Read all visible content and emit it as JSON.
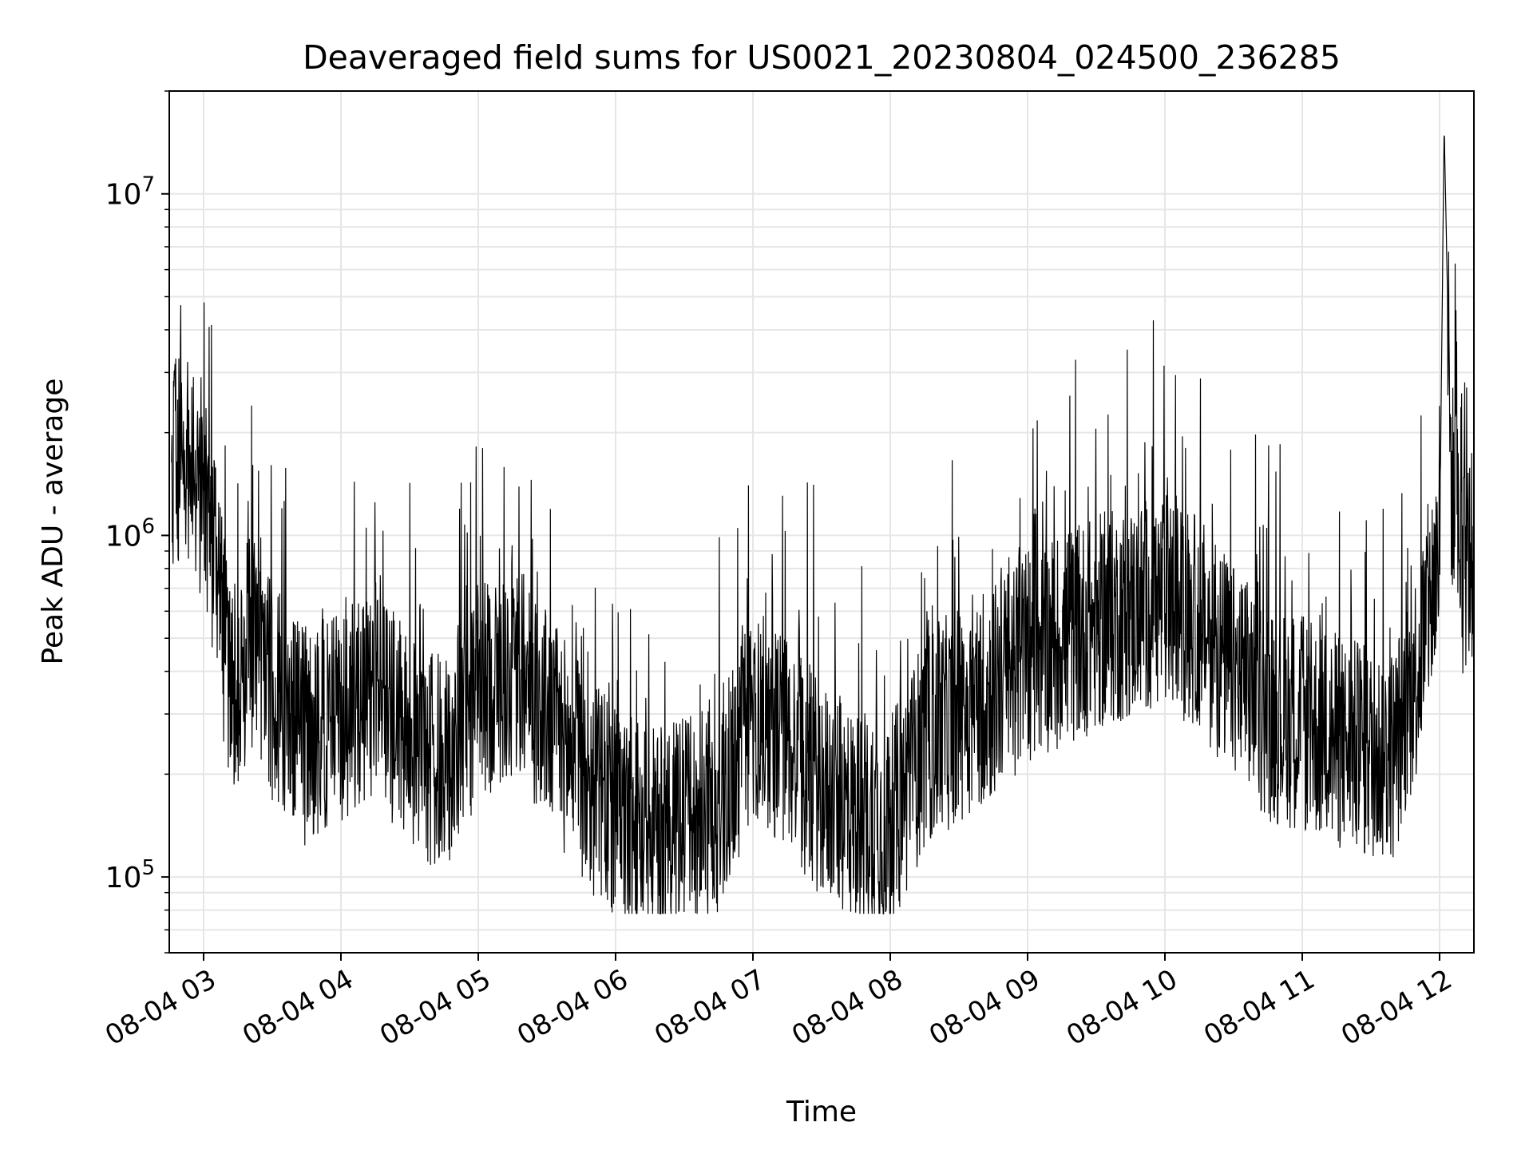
{
  "chart_data": {
    "type": "line",
    "title": "Deaveraged field sums for US0021_20230804_024500_236285",
    "xlabel": "Time",
    "ylabel": "Peak ADU - average",
    "y_scale": "log",
    "ylim": [
      60000,
      20000000
    ],
    "xlim": [
      "2023-08-04T02:45:00",
      "2023-08-04T12:15:00"
    ],
    "x_tick_labels": [
      "08-04 03",
      "08-04 04",
      "08-04 05",
      "08-04 06",
      "08-04 07",
      "08-04 08",
      "08-04 09",
      "08-04 10",
      "08-04 11",
      "08-04 12"
    ],
    "x_tick_values": [
      "2023-08-04T03:00",
      "2023-08-04T04:00",
      "2023-08-04T05:00",
      "2023-08-04T06:00",
      "2023-08-04T07:00",
      "2023-08-04T08:00",
      "2023-08-04T09:00",
      "2023-08-04T10:00",
      "2023-08-04T11:00",
      "2023-08-04T12:00"
    ],
    "y_tick_labels": [
      {
        "base": "10",
        "exp": "5",
        "value": 100000
      },
      {
        "base": "10",
        "exp": "6",
        "value": 1000000
      },
      {
        "base": "10",
        "exp": "7",
        "value": 10000000
      }
    ],
    "grid": true,
    "line_color": "#000000",
    "series": [
      {
        "x": [
          "2023-08-04T02:45",
          "2023-08-04T02:50",
          "2023-08-04T03:00",
          "2023-08-04T03:05",
          "2023-08-04T03:10",
          "2023-08-04T03:15",
          "2023-08-04T03:20",
          "2023-08-04T03:30",
          "2023-08-04T03:45",
          "2023-08-04T04:00",
          "2023-08-04T04:15",
          "2023-08-04T04:30",
          "2023-08-04T04:45",
          "2023-08-04T05:00",
          "2023-08-04T05:15",
          "2023-08-04T05:30",
          "2023-08-04T05:45",
          "2023-08-04T06:00",
          "2023-08-04T06:15",
          "2023-08-04T06:30",
          "2023-08-04T06:45",
          "2023-08-04T07:00",
          "2023-08-04T07:15",
          "2023-08-04T07:30",
          "2023-08-04T07:45",
          "2023-08-04T08:00",
          "2023-08-04T08:15",
          "2023-08-04T08:30",
          "2023-08-04T08:45",
          "2023-08-04T09:00",
          "2023-08-04T09:15",
          "2023-08-04T09:30",
          "2023-08-04T09:45",
          "2023-08-04T10:00",
          "2023-08-04T10:15",
          "2023-08-04T10:30",
          "2023-08-04T10:45",
          "2023-08-04T11:00",
          "2023-08-04T11:15",
          "2023-08-04T11:30",
          "2023-08-04T11:40",
          "2023-08-04T11:50",
          "2023-08-04T12:00",
          "2023-08-04T12:02",
          "2023-08-04T12:05",
          "2023-08-04T12:10",
          "2023-08-04T12:15"
        ],
        "values": [
          1500000,
          1800000,
          1300000,
          800000,
          450000,
          350000,
          500000,
          350000,
          250000,
          300000,
          350000,
          250000,
          200000,
          350000,
          400000,
          300000,
          200000,
          150000,
          130000,
          140000,
          160000,
          300000,
          250000,
          180000,
          150000,
          140000,
          250000,
          300000,
          350000,
          450000,
          500000,
          550000,
          600000,
          650000,
          550000,
          400000,
          300000,
          280000,
          250000,
          230000,
          230000,
          400000,
          900000,
          16000000,
          1500000,
          800000,
          900000
        ]
      }
    ]
  }
}
